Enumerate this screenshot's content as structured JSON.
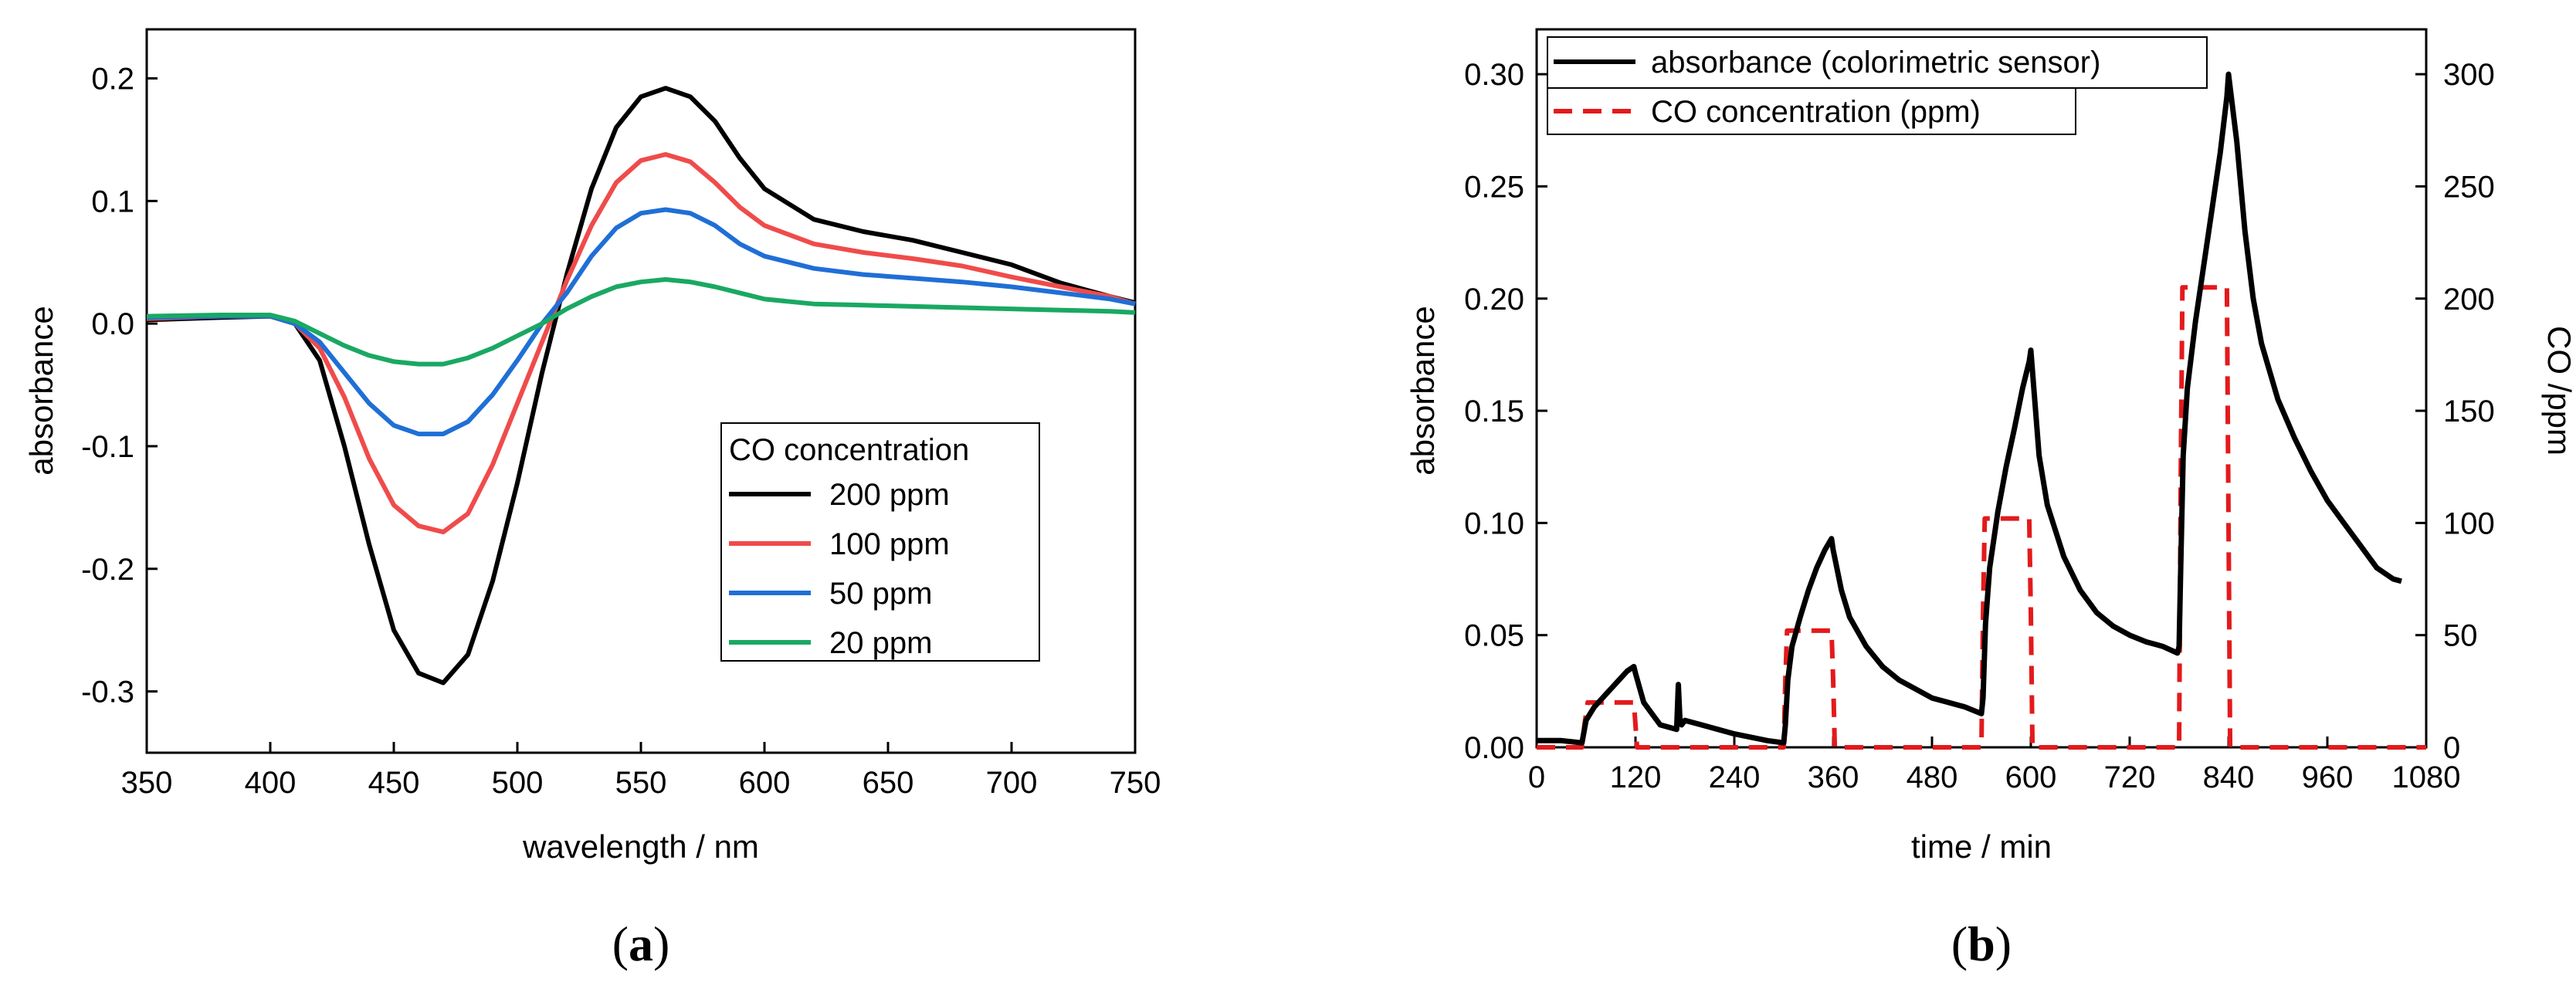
{
  "chart_data": [
    {
      "panel": "(a)",
      "caption_letter": "a",
      "type": "line",
      "xlabel": "wavelength / nm",
      "ylabel": "absorbance",
      "xlim": [
        350,
        750
      ],
      "ylim": [
        -0.35,
        0.24
      ],
      "xticks": [
        350,
        400,
        450,
        500,
        550,
        600,
        650,
        700,
        750
      ],
      "xtick_labels": [
        "350",
        "400",
        "450",
        "500",
        "550",
        "600",
        "650",
        "700",
        "750"
      ],
      "yticks": [
        -0.3,
        -0.2,
        -0.1,
        0.0,
        0.1,
        0.2
      ],
      "ytick_labels": [
        "-0.3",
        "-0.2",
        "-0.1",
        "0.0",
        "0.1",
        "0.2"
      ],
      "legend_title": "CO concentration",
      "legend_position": "lower-right",
      "series": [
        {
          "name": "200 ppm",
          "color": "#000000",
          "x": [
            350,
            380,
            400,
            410,
            420,
            430,
            440,
            450,
            460,
            470,
            480,
            490,
            500,
            510,
            520,
            530,
            540,
            550,
            560,
            570,
            580,
            590,
            600,
            620,
            640,
            660,
            680,
            700,
            720,
            740,
            750
          ],
          "y": [
            0.003,
            0.005,
            0.006,
            0.0,
            -0.03,
            -0.1,
            -0.18,
            -0.25,
            -0.285,
            -0.293,
            -0.27,
            -0.21,
            -0.13,
            -0.04,
            0.04,
            0.11,
            0.16,
            0.185,
            0.192,
            0.185,
            0.165,
            0.135,
            0.11,
            0.085,
            0.075,
            0.068,
            0.058,
            0.048,
            0.033,
            0.022,
            0.017
          ]
        },
        {
          "name": "100 ppm",
          "color": "#f04b4b",
          "x": [
            350,
            380,
            400,
            410,
            420,
            430,
            440,
            450,
            460,
            470,
            480,
            490,
            500,
            510,
            520,
            530,
            540,
            550,
            560,
            570,
            580,
            590,
            600,
            620,
            640,
            660,
            680,
            700,
            720,
            740,
            750
          ],
          "y": [
            0.004,
            0.006,
            0.006,
            0.0,
            -0.02,
            -0.06,
            -0.11,
            -0.148,
            -0.165,
            -0.17,
            -0.155,
            -0.115,
            -0.065,
            -0.015,
            0.035,
            0.08,
            0.115,
            0.133,
            0.138,
            0.132,
            0.115,
            0.095,
            0.08,
            0.065,
            0.058,
            0.053,
            0.047,
            0.038,
            0.03,
            0.022,
            0.016
          ]
        },
        {
          "name": "50 ppm",
          "color": "#1f6fd6",
          "x": [
            350,
            380,
            400,
            410,
            420,
            430,
            440,
            450,
            460,
            470,
            480,
            490,
            500,
            510,
            520,
            530,
            540,
            550,
            560,
            570,
            580,
            590,
            600,
            620,
            640,
            660,
            680,
            700,
            720,
            740,
            750
          ],
          "y": [
            0.005,
            0.006,
            0.006,
            0.0,
            -0.015,
            -0.04,
            -0.065,
            -0.083,
            -0.09,
            -0.09,
            -0.08,
            -0.058,
            -0.03,
            0.0,
            0.025,
            0.055,
            0.078,
            0.09,
            0.093,
            0.09,
            0.08,
            0.065,
            0.055,
            0.045,
            0.04,
            0.037,
            0.034,
            0.03,
            0.025,
            0.02,
            0.016
          ]
        },
        {
          "name": "20 ppm",
          "color": "#1aa863",
          "x": [
            350,
            380,
            400,
            410,
            420,
            430,
            440,
            450,
            460,
            470,
            480,
            490,
            500,
            510,
            520,
            530,
            540,
            550,
            560,
            570,
            580,
            590,
            600,
            620,
            640,
            660,
            680,
            700,
            720,
            740,
            750
          ],
          "y": [
            0.006,
            0.007,
            0.007,
            0.002,
            -0.008,
            -0.018,
            -0.026,
            -0.031,
            -0.033,
            -0.033,
            -0.028,
            -0.02,
            -0.01,
            0.0,
            0.012,
            0.022,
            0.03,
            0.034,
            0.036,
            0.034,
            0.03,
            0.025,
            0.02,
            0.016,
            0.015,
            0.014,
            0.013,
            0.012,
            0.011,
            0.01,
            0.009
          ]
        }
      ]
    },
    {
      "panel": "(b)",
      "caption_letter": "b",
      "type": "line",
      "xlabel": "time / min",
      "ylabel": "absorbance",
      "y2label": "CO /ppm",
      "xlim": [
        0,
        1080
      ],
      "ylim": [
        0,
        0.32
      ],
      "y2lim": [
        0,
        320
      ],
      "xticks": [
        0,
        120,
        240,
        360,
        480,
        600,
        720,
        840,
        960,
        1080
      ],
      "xtick_labels": [
        "0",
        "120",
        "240",
        "360",
        "480",
        "600",
        "720",
        "840",
        "960",
        "1080"
      ],
      "yticks": [
        0.0,
        0.05,
        0.1,
        0.15,
        0.2,
        0.25,
        0.3
      ],
      "ytick_labels": [
        "0.00",
        "0.05",
        "0.10",
        "0.15",
        "0.20",
        "0.25",
        "0.30"
      ],
      "y2ticks": [
        0,
        50,
        100,
        150,
        200,
        250,
        300
      ],
      "y2tick_labels": [
        "0",
        "50",
        "100",
        "150",
        "200",
        "250",
        "300"
      ],
      "legend_position": "top-left",
      "series": [
        {
          "name": "absorbance (colorimetric sensor)",
          "color": "#000000",
          "style": "solid",
          "axis": "left",
          "x": [
            0,
            30,
            55,
            60,
            70,
            80,
            90,
            100,
            110,
            118,
            120,
            130,
            150,
            170,
            172,
            174,
            176,
            180,
            200,
            240,
            280,
            300,
            302,
            305,
            310,
            320,
            330,
            340,
            350,
            358,
            360,
            370,
            380,
            400,
            420,
            440,
            460,
            480,
            500,
            520,
            540,
            542,
            545,
            550,
            560,
            570,
            580,
            590,
            598,
            600,
            610,
            620,
            640,
            660,
            680,
            700,
            720,
            740,
            760,
            778,
            780,
            782,
            785,
            790,
            800,
            810,
            820,
            830,
            838,
            840,
            850,
            860,
            870,
            880,
            900,
            920,
            940,
            960,
            980,
            1000,
            1020,
            1040,
            1050
          ],
          "y": [
            0.003,
            0.003,
            0.002,
            0.012,
            0.018,
            0.022,
            0.026,
            0.03,
            0.034,
            0.036,
            0.033,
            0.02,
            0.01,
            0.008,
            0.028,
            0.012,
            0.01,
            0.012,
            0.01,
            0.006,
            0.003,
            0.002,
            0.01,
            0.03,
            0.045,
            0.058,
            0.07,
            0.08,
            0.088,
            0.093,
            0.088,
            0.07,
            0.058,
            0.045,
            0.036,
            0.03,
            0.026,
            0.022,
            0.02,
            0.018,
            0.015,
            0.022,
            0.055,
            0.08,
            0.105,
            0.125,
            0.142,
            0.16,
            0.172,
            0.177,
            0.13,
            0.108,
            0.085,
            0.07,
            0.06,
            0.054,
            0.05,
            0.047,
            0.045,
            0.042,
            0.045,
            0.08,
            0.13,
            0.16,
            0.19,
            0.215,
            0.24,
            0.265,
            0.29,
            0.3,
            0.27,
            0.23,
            0.2,
            0.18,
            0.155,
            0.138,
            0.123,
            0.11,
            0.1,
            0.09,
            0.08,
            0.075,
            0.074
          ]
        },
        {
          "name": "CO concentration (ppm)",
          "color": "#e31a1c",
          "style": "dashed",
          "axis": "right",
          "x": [
            0,
            55,
            58,
            62,
            118,
            120,
            122,
            300,
            302,
            304,
            358,
            360,
            362,
            540,
            542,
            544,
            598,
            600,
            602,
            780,
            782,
            784,
            838,
            840,
            842,
            1080
          ],
          "y": [
            0,
            0,
            10,
            20,
            20,
            10,
            0,
            0,
            30,
            52,
            52,
            30,
            0,
            0,
            60,
            102,
            102,
            60,
            0,
            0,
            120,
            205,
            205,
            100,
            0,
            0
          ]
        }
      ]
    }
  ]
}
